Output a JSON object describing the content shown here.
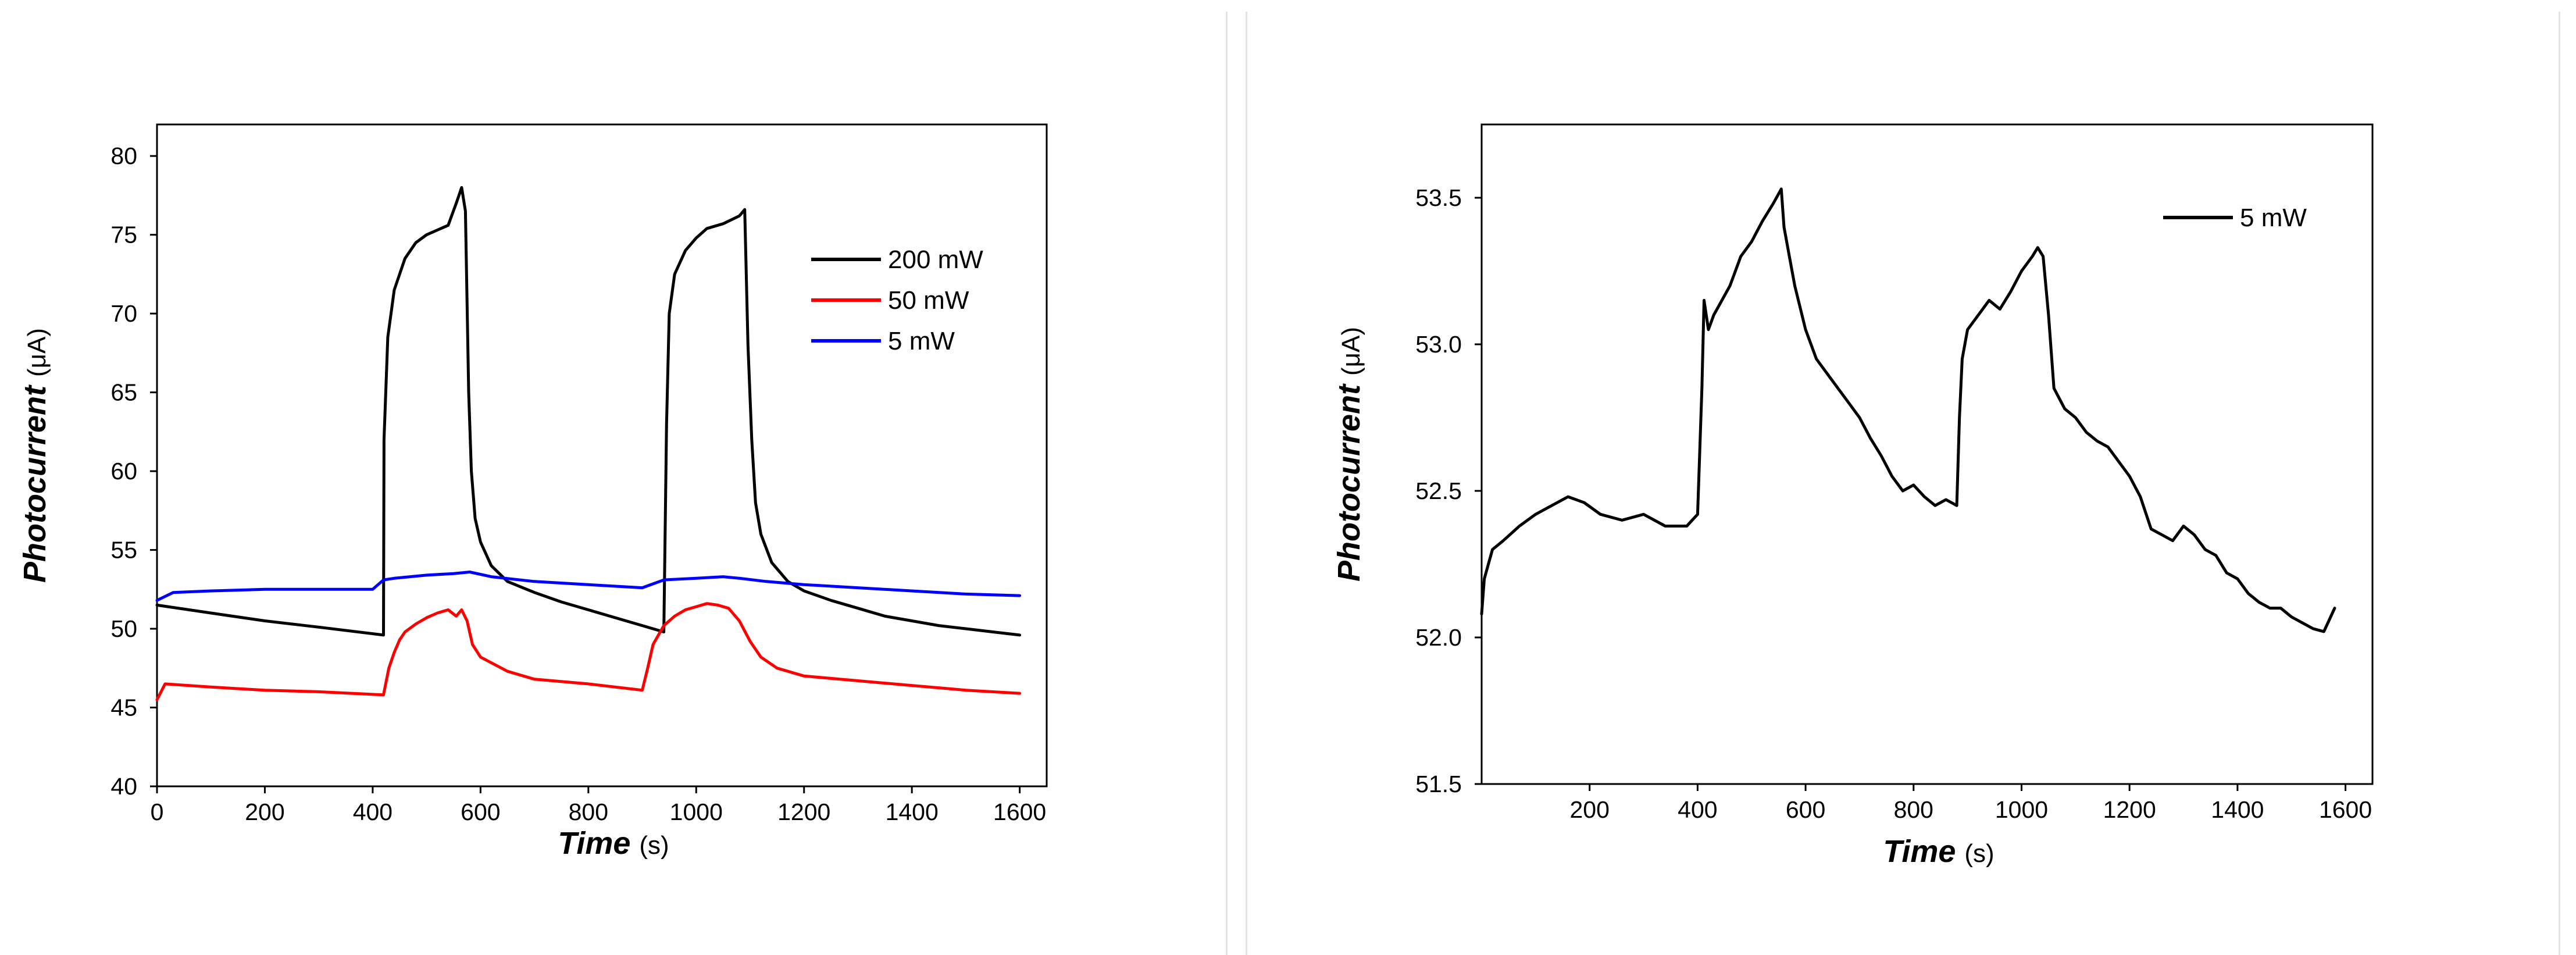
{
  "chart_data": [
    {
      "type": "line",
      "title": "",
      "xlabel": "Time",
      "xlabel_unit": "(s)",
      "ylabel": "Photocurrent",
      "ylabel_unit": "(μA)",
      "xlim": [
        0,
        1650
      ],
      "ylim": [
        40,
        82
      ],
      "xticks": [
        0,
        200,
        400,
        600,
        800,
        1000,
        1200,
        1400,
        1600
      ],
      "yticks": [
        40,
        45,
        50,
        55,
        60,
        65,
        70,
        75,
        80
      ],
      "grid": false,
      "legend_position": "top-right",
      "series": [
        {
          "name": "200 mW",
          "color": "#000000",
          "x": [
            0,
            100,
            200,
            300,
            420,
            421,
            428,
            440,
            460,
            480,
            500,
            520,
            540,
            555,
            565,
            572,
            578,
            583,
            590,
            600,
            620,
            650,
            700,
            750,
            800,
            850,
            900,
            940,
            945,
            950,
            960,
            980,
            1000,
            1020,
            1050,
            1080,
            1090,
            1096,
            1103,
            1110,
            1120,
            1140,
            1170,
            1200,
            1250,
            1300,
            1350,
            1400,
            1450,
            1500,
            1550,
            1600
          ],
          "values": [
            51.5,
            51,
            50.5,
            50.1,
            49.6,
            62,
            68.5,
            71.5,
            73.5,
            74.5,
            75,
            75.3,
            75.6,
            77,
            78,
            76.5,
            65,
            60,
            57,
            55.5,
            54,
            53,
            52.3,
            51.7,
            51.2,
            50.7,
            50.2,
            49.8,
            63,
            70,
            72.5,
            74,
            74.8,
            75.4,
            75.7,
            76.2,
            76.6,
            68,
            62,
            58,
            56,
            54.2,
            53,
            52.4,
            51.8,
            51.3,
            50.8,
            50.5,
            50.2,
            50,
            49.8,
            49.6
          ]
        },
        {
          "name": "50 mW",
          "color": "#ff0000",
          "x": [
            0,
            15,
            100,
            200,
            300,
            420,
            430,
            440,
            450,
            460,
            480,
            500,
            520,
            540,
            555,
            565,
            575,
            585,
            600,
            650,
            700,
            800,
            900,
            910,
            920,
            940,
            960,
            980,
            1000,
            1020,
            1040,
            1060,
            1080,
            1100,
            1120,
            1150,
            1200,
            1300,
            1400,
            1500,
            1600
          ],
          "values": [
            45.5,
            46.5,
            46.3,
            46.1,
            46,
            45.8,
            47.5,
            48.5,
            49.3,
            49.8,
            50.3,
            50.7,
            51,
            51.2,
            50.8,
            51.2,
            50.5,
            49,
            48.2,
            47.3,
            46.8,
            46.5,
            46.1,
            47.5,
            49,
            50.2,
            50.8,
            51.2,
            51.4,
            51.6,
            51.5,
            51.3,
            50.5,
            49.2,
            48.2,
            47.5,
            47,
            46.7,
            46.4,
            46.1,
            45.9
          ]
        },
        {
          "name": "5 mW",
          "color": "#0000ff",
          "x": [
            0,
            30,
            100,
            200,
            300,
            400,
            420,
            440,
            500,
            550,
            580,
            620,
            700,
            800,
            900,
            940,
            1000,
            1050,
            1080,
            1130,
            1200,
            1300,
            1400,
            1500,
            1600
          ],
          "values": [
            51.8,
            52.3,
            52.4,
            52.5,
            52.5,
            52.5,
            53.1,
            53.2,
            53.4,
            53.5,
            53.6,
            53.3,
            53,
            52.8,
            52.6,
            53.1,
            53.2,
            53.3,
            53.2,
            53,
            52.8,
            52.6,
            52.4,
            52.2,
            52.1
          ]
        }
      ]
    },
    {
      "type": "line",
      "title": "",
      "xlabel": "Time",
      "xlabel_unit": "(s)",
      "ylabel": "Photocurrent",
      "ylabel_unit": "(μA)",
      "xlim": [
        0,
        1650
      ],
      "ylim": [
        51.5,
        53.75
      ],
      "xticks": [
        200,
        400,
        600,
        800,
        1000,
        1200,
        1400,
        1600
      ],
      "xtick_labels": [
        "200",
        "400",
        "600",
        "800",
        "1000",
        "1200",
        "1400",
        "1600"
      ],
      "yticks": [
        51.5,
        52.0,
        52.5,
        53.0,
        53.5
      ],
      "ytick_labels": [
        "51.5",
        "52.0",
        "52.5",
        "53.0",
        "53.5"
      ],
      "grid": false,
      "legend_position": "top-right",
      "series": [
        {
          "name": "5 mW",
          "color": "#000000",
          "x": [
            0,
            5,
            20,
            40,
            70,
            100,
            130,
            160,
            190,
            220,
            260,
            300,
            340,
            380,
            400,
            408,
            412,
            420,
            430,
            445,
            460,
            480,
            500,
            520,
            540,
            555,
            560,
            570,
            580,
            600,
            620,
            640,
            660,
            680,
            700,
            720,
            740,
            760,
            780,
            800,
            820,
            840,
            860,
            880,
            885,
            890,
            900,
            920,
            940,
            960,
            980,
            1000,
            1020,
            1030,
            1040,
            1050,
            1060,
            1080,
            1100,
            1120,
            1140,
            1160,
            1180,
            1200,
            1220,
            1240,
            1260,
            1280,
            1300,
            1320,
            1340,
            1360,
            1380,
            1400,
            1420,
            1440,
            1460,
            1480,
            1500,
            1520,
            1540,
            1560,
            1580
          ],
          "values": [
            52.08,
            52.2,
            52.3,
            52.33,
            52.38,
            52.42,
            52.45,
            52.48,
            52.46,
            52.42,
            52.4,
            52.42,
            52.38,
            52.38,
            52.42,
            52.85,
            53.15,
            53.05,
            53.1,
            53.15,
            53.2,
            53.3,
            53.35,
            53.42,
            53.48,
            53.53,
            53.4,
            53.3,
            53.2,
            53.05,
            52.95,
            52.9,
            52.85,
            52.8,
            52.75,
            52.68,
            52.62,
            52.55,
            52.5,
            52.52,
            52.48,
            52.45,
            52.47,
            52.45,
            52.75,
            52.95,
            53.05,
            53.1,
            53.15,
            53.12,
            53.18,
            53.25,
            53.3,
            53.33,
            53.3,
            53.1,
            52.85,
            52.78,
            52.75,
            52.7,
            52.67,
            52.65,
            52.6,
            52.55,
            52.48,
            52.37,
            52.35,
            52.33,
            52.38,
            52.35,
            52.3,
            52.28,
            52.22,
            52.2,
            52.15,
            52.12,
            52.1,
            52.1,
            52.07,
            52.05,
            52.03,
            52.02,
            52.1
          ]
        }
      ]
    }
  ]
}
